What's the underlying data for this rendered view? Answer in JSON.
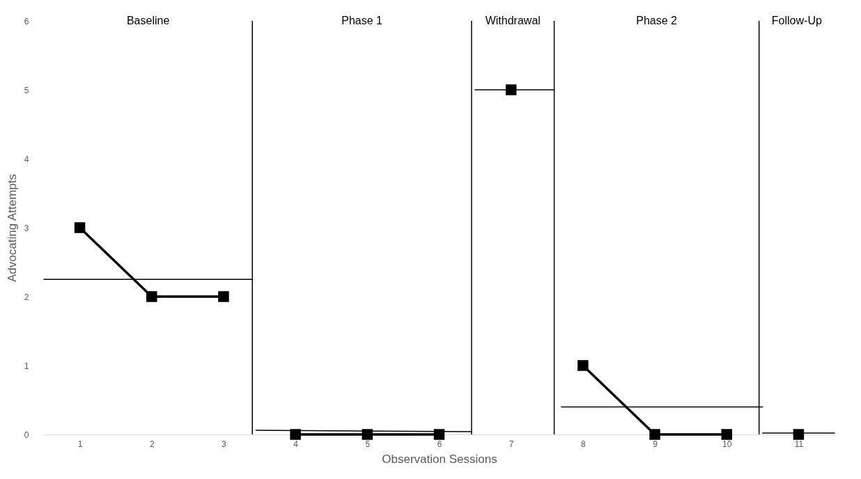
{
  "chart_data": {
    "type": "line",
    "xlabel": "Observation Sessions",
    "ylabel": "Advocating Attempts",
    "xlim": [
      0.5,
      11.5
    ],
    "xticks": [
      1,
      2,
      3,
      4,
      5,
      6,
      7,
      8,
      9,
      10,
      11
    ],
    "ylim": [
      0,
      6
    ],
    "yticks": [
      0,
      1,
      2,
      3,
      4,
      5,
      6
    ],
    "grid": false,
    "marker": "square",
    "line_style": "solid",
    "series": [
      {
        "color": "#000000",
        "x": [
          1,
          2,
          3
        ],
        "values": [
          3,
          2,
          2
        ]
      },
      {
        "color": "#000000",
        "x": [
          4,
          5,
          6
        ],
        "values": [
          0,
          0,
          0
        ]
      },
      {
        "color": "#000000",
        "x": [
          7
        ],
        "values": [
          5
        ]
      },
      {
        "color": "#000000",
        "x": [
          8,
          9,
          10
        ],
        "values": [
          1,
          0,
          0
        ]
      },
      {
        "color": "#000000",
        "x": [
          11
        ],
        "values": [
          0
        ]
      },
      {
        "color": "#000000",
        "marker": "none",
        "x": [
          0.5,
          3.4
        ],
        "values": [
          2.25,
          2.25
        ]
      },
      {
        "color": "#000000",
        "marker": "none",
        "x": [
          3.45,
          6.45
        ],
        "values": [
          0.06,
          0.04
        ]
      },
      {
        "color": "#000000",
        "marker": "none",
        "x": [
          6.5,
          7.6
        ],
        "values": [
          5,
          5
        ]
      },
      {
        "color": "#000000",
        "marker": "none",
        "x": [
          7.7,
          10.5
        ],
        "values": [
          0.4,
          0.4
        ]
      },
      {
        "color": "#000000",
        "marker": "none",
        "x": [
          10.5,
          11.5
        ],
        "values": [
          0.02,
          0.02
        ]
      }
    ],
    "ref_lines": [
      {
        "axis": "x",
        "value": 3.4,
        "color": "#000000"
      },
      {
        "axis": "x",
        "value": 6.45,
        "color": "#000000"
      },
      {
        "axis": "x",
        "value": 7.6,
        "color": "#000000"
      },
      {
        "axis": "x",
        "value": 10.45,
        "color": "#000000"
      }
    ],
    "annotations": [
      "Baseline",
      "Phase 1",
      "Withdrawal",
      "Phase 2",
      "Follow-Up"
    ]
  }
}
